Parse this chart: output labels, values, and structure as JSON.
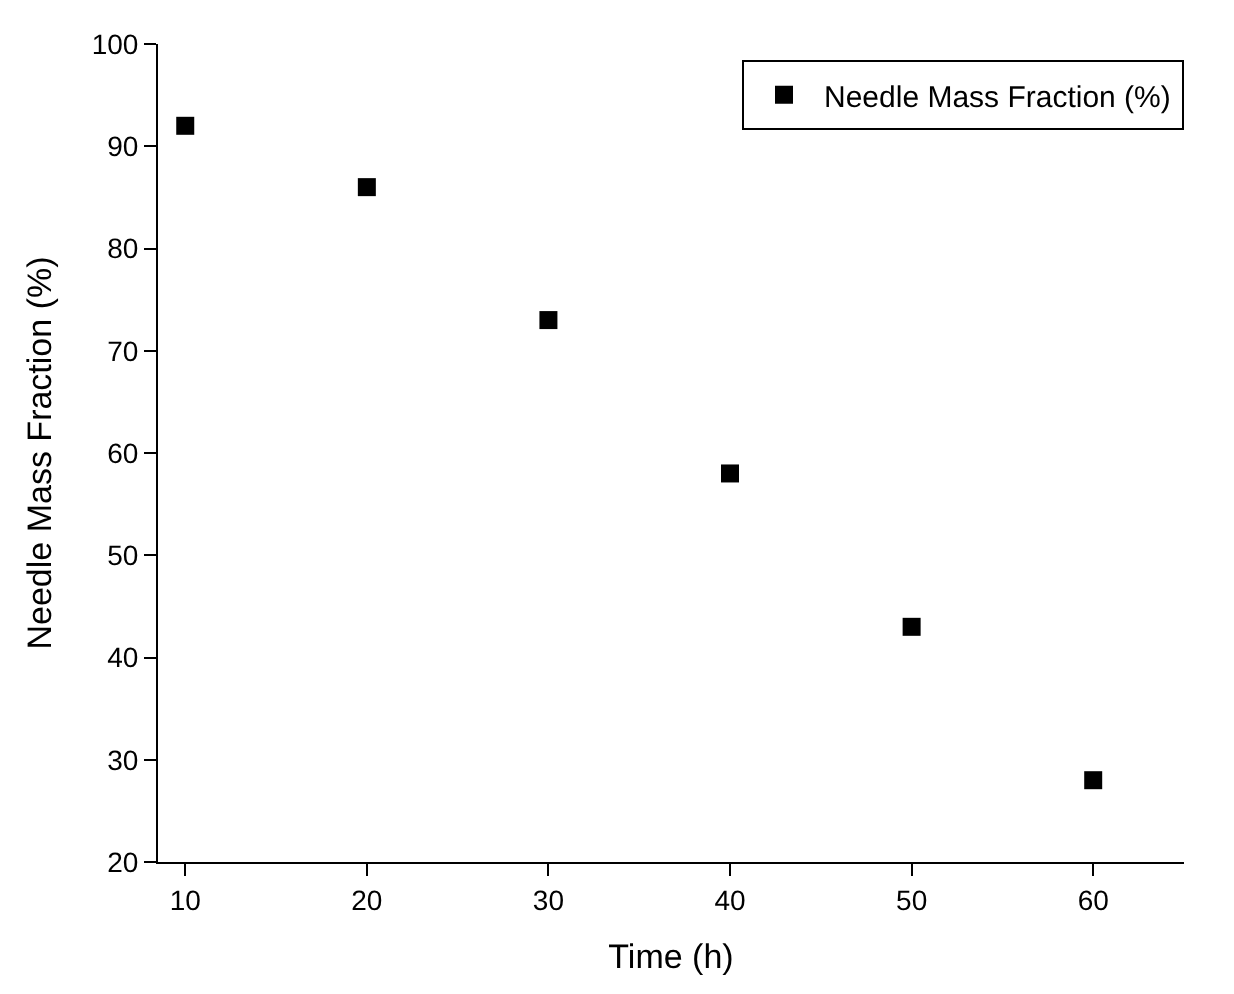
{
  "chart_data": {
    "type": "scatter",
    "xlabel": "Time (h)",
    "ylabel": "Needle Mass Fraction (%)",
    "x": [
      10,
      20,
      30,
      40,
      50,
      60
    ],
    "series": [
      {
        "name": "Needle Mass Fraction (%)",
        "color": "#000000",
        "values": [
          92,
          86,
          73,
          58,
          43,
          28
        ]
      }
    ],
    "xlim": [
      8.5,
      65
    ],
    "xticks": [
      10,
      20,
      30,
      40,
      50,
      60
    ],
    "ylim": [
      20,
      100
    ],
    "yticks": [
      20,
      30,
      40,
      50,
      60,
      70,
      80,
      90,
      100
    ],
    "marker": "square",
    "legend": "top right"
  }
}
